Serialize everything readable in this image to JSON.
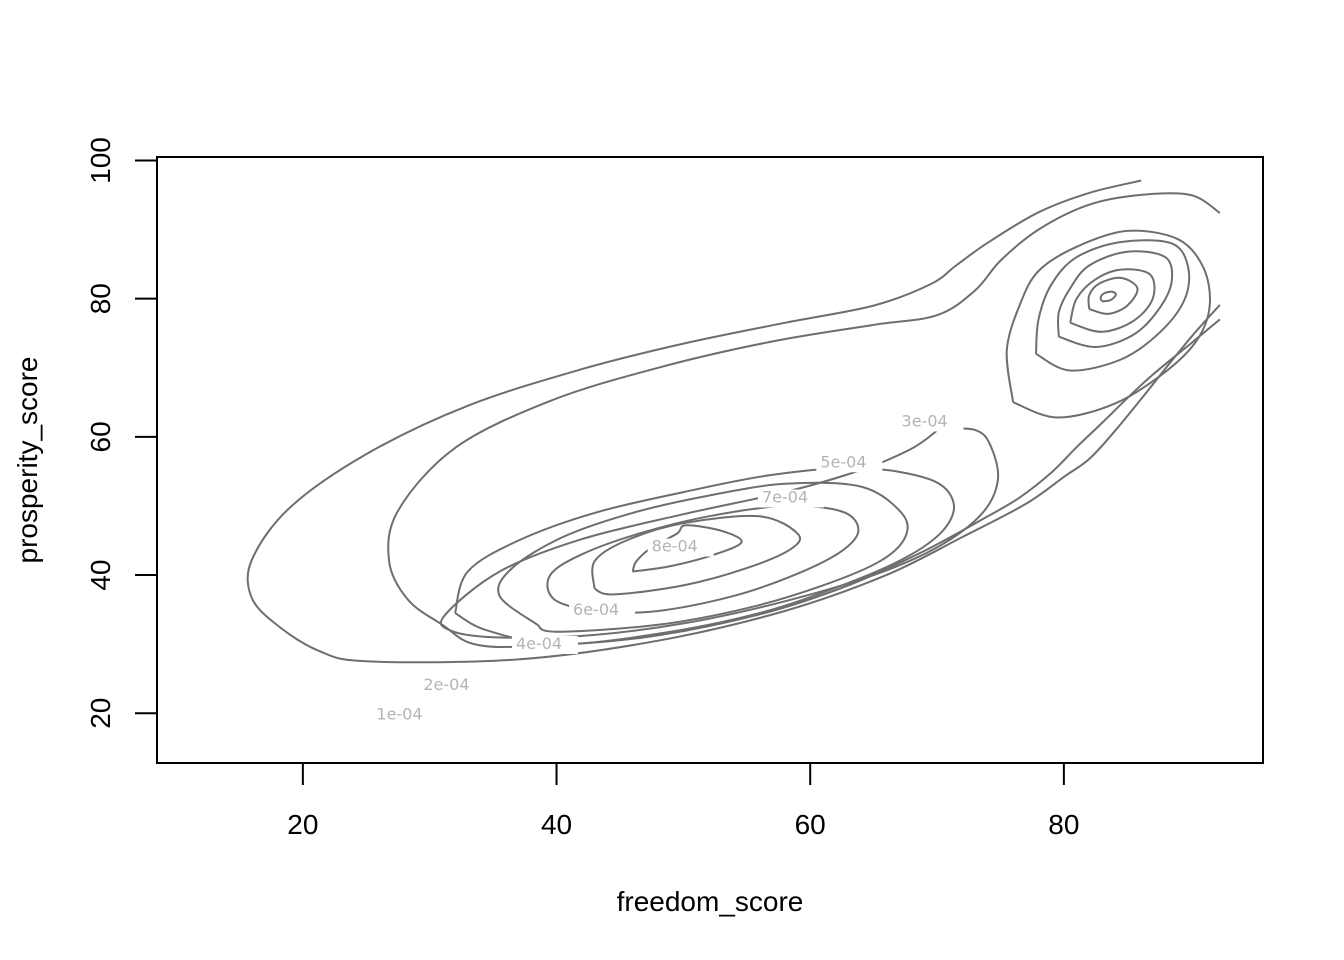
{
  "chart_data": {
    "type": "contour",
    "title": "",
    "xlabel": "freedom_score",
    "ylabel": "prosperity_score",
    "xlim": [
      8.5,
      95.7
    ],
    "ylim": [
      12.8,
      100.5
    ],
    "xticks": [
      20,
      40,
      60,
      80
    ],
    "yticks": [
      20,
      40,
      60,
      80,
      100
    ],
    "xtick_labels": [
      "20",
      "40",
      "60",
      "80"
    ],
    "ytick_labels": [
      "20",
      "40",
      "60",
      "80",
      "100"
    ],
    "grid": false,
    "line_color": "#6e6e6e",
    "label_color": "#b4b4b4",
    "contours": [
      {
        "level": "1e-04",
        "paths": [
          [
            [
              86.1,
              97.1
            ],
            [
              82.0,
              95.3
            ],
            [
              78.0,
              92.5
            ],
            [
              74.0,
              88.1
            ],
            [
              71.5,
              84.8
            ],
            [
              69.5,
              82.1
            ],
            [
              65.0,
              79.0
            ],
            [
              58.0,
              76.5
            ],
            [
              50.0,
              73.5
            ],
            [
              42.0,
              69.8
            ],
            [
              33.0,
              64.5
            ],
            [
              25.0,
              57.5
            ],
            [
              19.0,
              49.8
            ],
            [
              16.0,
              42.3
            ],
            [
              15.9,
              37.0
            ],
            [
              17.8,
              33.0
            ],
            [
              21.3,
              29.0
            ],
            [
              25.2,
              27.5
            ],
            [
              37.0,
              27.8
            ],
            [
              48.0,
              30.5
            ],
            [
              58.0,
              34.8
            ],
            [
              66.0,
              40.0
            ],
            [
              72.0,
              45.5
            ],
            [
              77.0,
              50.3
            ],
            [
              80.0,
              54.2
            ],
            [
              82.0,
              56.8
            ],
            [
              84.0,
              60.8
            ],
            [
              86.5,
              66.4
            ],
            [
              88.5,
              71.0
            ],
            [
              90.3,
              75.0
            ],
            [
              92.3,
              79.1
            ]
          ]
        ],
        "label_at": [
          25.8,
          19.1
        ]
      },
      {
        "level": "2e-04",
        "paths": [
          [
            [
              92.3,
              92.4
            ],
            [
              90.0,
              95.0
            ],
            [
              86.0,
              95.0
            ],
            [
              82.0,
              93.6
            ],
            [
              78.0,
              90.0
            ],
            [
              75.0,
              85.5
            ],
            [
              73.0,
              81.2
            ],
            [
              70.0,
              77.6
            ],
            [
              65.0,
              76.2
            ],
            [
              57.0,
              73.8
            ],
            [
              48.0,
              70.0
            ],
            [
              39.5,
              65.2
            ],
            [
              32.0,
              58.4
            ],
            [
              27.5,
              49.3
            ],
            [
              26.8,
              42.0
            ],
            [
              28.3,
              36.4
            ],
            [
              31.0,
              32.8
            ],
            [
              33.5,
              30.0
            ],
            [
              38.0,
              29.7
            ],
            [
              47.0,
              31.0
            ],
            [
              56.0,
              34.3
            ],
            [
              63.0,
              38.5
            ],
            [
              69.0,
              43.5
            ],
            [
              74.0,
              48.5
            ],
            [
              76.5,
              51.2
            ],
            [
              79.0,
              54.8
            ],
            [
              81.0,
              58.5
            ],
            [
              83.0,
              62.0
            ],
            [
              85.0,
              65.6
            ],
            [
              87.0,
              69.0
            ],
            [
              90.0,
              73.5
            ],
            [
              92.3,
              77.0
            ]
          ]
        ],
        "label_at": [
          29.5,
          23.4
        ]
      },
      {
        "level": "3e-04",
        "paths": [
          [
            [
              76.0,
              65.0
            ],
            [
              79.5,
              62.8
            ],
            [
              84.0,
              64.8
            ],
            [
              88.0,
              69.4
            ],
            [
              90.5,
              74.0
            ],
            [
              91.5,
              79.0
            ],
            [
              91.0,
              84.5
            ],
            [
              89.0,
              88.6
            ],
            [
              85.0,
              89.8
            ],
            [
              81.0,
              87.5
            ],
            [
              78.0,
              84.0
            ],
            [
              76.5,
              79.0
            ],
            [
              75.5,
              72.5
            ],
            [
              76.0,
              65.0
            ]
          ],
          [
            [
              70.2,
              61.2
            ],
            [
              68.0,
              58.3
            ],
            [
              64.0,
              55.2
            ],
            [
              58.0,
              52.0
            ],
            [
              50.0,
              48.8
            ],
            [
              42.0,
              45.2
            ],
            [
              35.5,
              40.5
            ],
            [
              31.2,
              34.2
            ],
            [
              31.6,
              32.0
            ],
            [
              35.0,
              31.0
            ],
            [
              42.0,
              31.2
            ],
            [
              50.0,
              33.0
            ],
            [
              58.0,
              36.2
            ],
            [
              65.0,
              40.0
            ],
            [
              70.0,
              44.0
            ],
            [
              73.5,
              48.8
            ],
            [
              74.8,
              53.8
            ],
            [
              74.2,
              58.8
            ],
            [
              73.0,
              61.0
            ],
            [
              70.2,
              61.2
            ]
          ]
        ],
        "label_at": [
          67.2,
          61.5
        ]
      },
      {
        "level": "4e-04",
        "paths": [
          [
            [
              77.8,
              72.0
            ],
            [
              80.5,
              69.6
            ],
            [
              84.5,
              71.2
            ],
            [
              87.5,
              75.0
            ],
            [
              89.5,
              79.8
            ],
            [
              89.8,
              84.5
            ],
            [
              88.5,
              88.0
            ],
            [
              84.5,
              88.2
            ],
            [
              81.0,
              86.0
            ],
            [
              79.0,
              82.0
            ],
            [
              78.0,
              77.0
            ],
            [
              77.8,
              72.0
            ]
          ],
          [
            [
              32.0,
              34.5
            ],
            [
              34.5,
              32.0
            ],
            [
              40.0,
              30.0
            ],
            [
              48.0,
              31.5
            ],
            [
              56.0,
              34.5
            ],
            [
              62.5,
              38.5
            ],
            [
              67.5,
              42.5
            ],
            [
              70.5,
              46.5
            ],
            [
              71.3,
              50.5
            ],
            [
              69.5,
              53.8
            ],
            [
              64.0,
              55.5
            ],
            [
              57.0,
              54.5
            ],
            [
              50.0,
              52.0
            ],
            [
              43.0,
              49.0
            ],
            [
              37.0,
              45.0
            ],
            [
              33.0,
              40.5
            ],
            [
              32.0,
              34.5
            ]
          ]
        ],
        "label_at": [
          36.8,
          29.3
        ]
      },
      {
        "level": "5e-04",
        "paths": [
          [
            [
              79.6,
              74.5
            ],
            [
              82.5,
              73.0
            ],
            [
              85.5,
              74.8
            ],
            [
              87.5,
              78.5
            ],
            [
              88.5,
              82.5
            ],
            [
              88.0,
              86.0
            ],
            [
              85.0,
              86.8
            ],
            [
              82.0,
              84.8
            ],
            [
              80.5,
              81.5
            ],
            [
              79.6,
              78.0
            ],
            [
              79.6,
              74.5
            ]
          ],
          [
            [
              38.5,
              32.8
            ],
            [
              40.0,
              31.8
            ],
            [
              48.0,
              32.8
            ],
            [
              55.0,
              35.2
            ],
            [
              61.0,
              38.5
            ],
            [
              65.5,
              42.0
            ],
            [
              67.5,
              45.5
            ],
            [
              67.2,
              49.0
            ],
            [
              64.0,
              52.8
            ],
            [
              58.0,
              53.2
            ],
            [
              52.0,
              51.5
            ],
            [
              46.0,
              49.0
            ],
            [
              40.5,
              45.5
            ],
            [
              36.5,
              41.0
            ],
            [
              35.5,
              37.0
            ],
            [
              38.5,
              32.8
            ]
          ]
        ],
        "label_at": [
          60.8,
          55.6
        ]
      },
      {
        "level": "6e-04",
        "paths": [
          [
            [
              80.5,
              76.5
            ],
            [
              83.0,
              75.2
            ],
            [
              85.5,
              76.8
            ],
            [
              87.0,
              80.0
            ],
            [
              86.8,
              83.5
            ],
            [
              84.5,
              84.2
            ],
            [
              82.5,
              82.8
            ],
            [
              81.0,
              80.0
            ],
            [
              80.5,
              76.5
            ]
          ],
          [
            [
              43.0,
              34.5
            ],
            [
              48.0,
              34.8
            ],
            [
              54.0,
              37.0
            ],
            [
              59.0,
              40.2
            ],
            [
              62.5,
              43.5
            ],
            [
              63.8,
              46.5
            ],
            [
              62.5,
              49.2
            ],
            [
              58.0,
              50.0
            ],
            [
              52.0,
              48.5
            ],
            [
              46.5,
              46.0
            ],
            [
              42.0,
              43.0
            ],
            [
              39.5,
              40.0
            ],
            [
              39.8,
              36.5
            ],
            [
              43.0,
              34.5
            ]
          ]
        ],
        "label_at": [
          41.3,
          34.2
        ]
      },
      {
        "level": "7e-04",
        "paths": [
          [
            [
              82.0,
              78.5
            ],
            [
              83.5,
              77.8
            ],
            [
              85.0,
              79.0
            ],
            [
              85.8,
              81.5
            ],
            [
              84.5,
              83.0
            ],
            [
              82.8,
              82.2
            ],
            [
              82.0,
              80.5
            ],
            [
              82.0,
              78.5
            ]
          ],
          [
            [
              43.0,
              38.0
            ],
            [
              44.5,
              37.2
            ],
            [
              50.0,
              38.5
            ],
            [
              55.0,
              41.0
            ],
            [
              58.5,
              43.8
            ],
            [
              59.0,
              46.0
            ],
            [
              56.0,
              48.5
            ],
            [
              50.0,
              47.5
            ],
            [
              45.5,
              45.0
            ],
            [
              43.0,
              42.0
            ],
            [
              43.0,
              38.0
            ]
          ]
        ],
        "label_at": [
          56.2,
          50.5
        ]
      },
      {
        "level": "8e-04",
        "paths": [
          [
            [
              83.0,
              79.6
            ],
            [
              83.7,
              79.8
            ],
            [
              84.1,
              80.6
            ],
            [
              83.8,
              81.0
            ],
            [
              83.2,
              80.8
            ],
            [
              82.9,
              80.2
            ],
            [
              83.0,
              79.6
            ]
          ],
          [
            [
              46.0,
              40.5
            ],
            [
              49.0,
              41.3
            ],
            [
              52.5,
              43.0
            ],
            [
              54.6,
              44.8
            ],
            [
              53.0,
              46.4
            ],
            [
              50.2,
              47.2
            ],
            [
              49.5,
              46.0
            ],
            [
              47.5,
              44.0
            ],
            [
              46.3,
              42.0
            ],
            [
              46.0,
              40.5
            ]
          ]
        ],
        "label_at": [
          47.5,
          43.4
        ]
      }
    ]
  }
}
